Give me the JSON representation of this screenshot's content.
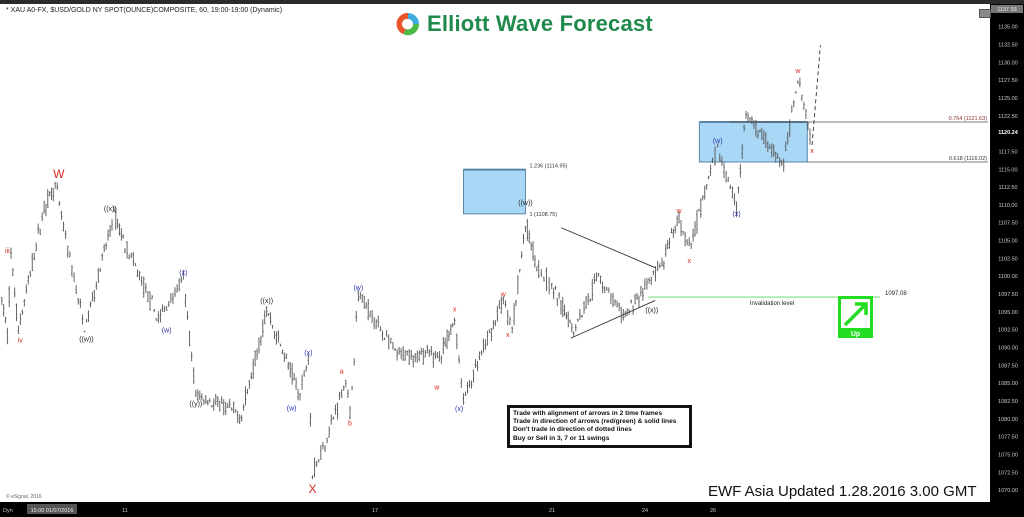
{
  "header": {
    "instrument": "* XAU A0-FX, $USD/GOLD NY SPOT(OUNCE)COMPOSITE, 60, 19:00-19:00 (Dynamic)"
  },
  "logo": {
    "text": "Elliott Wave Forecast"
  },
  "rules_box": {
    "lines": [
      "Trade with alignment of arrows in 2 time frames",
      "Trade in direction of arrows (red/green) & solid lines",
      "Don't trade in direction of dotted lines",
      "Buy or Sell in 3, 7 or 11 swings"
    ]
  },
  "footer": {
    "update": "EWF Asia Updated 1.28.2016 3.00 GMT",
    "copyright": "© eSignal, 2016"
  },
  "time_axis": {
    "mode": "Dyn",
    "cursor_label": "15:00 01/07/2016"
  },
  "colors": {
    "red": "#d42a1e",
    "blue": "#2a2fb5",
    "black": "#222222",
    "box_fill": "#a9d8f7",
    "box_edge": "#5a86a8",
    "green": "#22dd22",
    "bars": "#555555"
  },
  "chart_data": {
    "type": "ohlc",
    "title": "",
    "ylim": [
      1070,
      1137.93
    ],
    "y_ticks": [
      1135,
      1132.5,
      1130,
      1127.5,
      1125,
      1122.5,
      1117.5,
      1115,
      1112.5,
      1110,
      1107.5,
      1105,
      1102.5,
      1100,
      1097.5,
      1095,
      1092.5,
      1090,
      1087.5,
      1085,
      1082.5,
      1080,
      1077.5,
      1075,
      1072.5,
      1070
    ],
    "y_tick_labels": [
      "1135.00",
      "1132.50",
      "1130.00",
      "1127.50",
      "1125.00",
      "1122.50",
      "1117.50",
      "1115.00",
      "1112.50",
      "1110.00",
      "1107.50",
      "1105.00",
      "1102.50",
      "1100.00",
      "1097.50",
      "1095.00",
      "1092.50",
      "1090.00",
      "1087.50",
      "1085.00",
      "1082.50",
      "1080.00",
      "1077.50",
      "1075.00",
      "1072.50",
      "1070.00"
    ],
    "top_price_label": "1137.93",
    "last_price": 1120.24,
    "last_price_label": "1120.24",
    "x_ticks": [
      {
        "day": 11,
        "label": "11"
      },
      {
        "day": 17,
        "label": "17"
      },
      {
        "day": 21,
        "label": "21"
      },
      {
        "day": 24,
        "label": "24"
      },
      {
        "day": 26,
        "label": "26"
      }
    ],
    "price_path": [
      {
        "day": 7.65,
        "price": 1096.7
      },
      {
        "day": 7.8,
        "price": 1091.8
      },
      {
        "day": 7.9,
        "price": 1103.0
      },
      {
        "day": 8.1,
        "price": 1092.5
      },
      {
        "day": 8.8,
        "price": 1109.6
      },
      {
        "day": 9.1,
        "price": 1112.8
      },
      {
        "day": 9.5,
        "price": 1102.3
      },
      {
        "day": 9.9,
        "price": 1092.5
      },
      {
        "day": 10.7,
        "price": 1108.6
      },
      {
        "day": 11.8,
        "price": 1093.9
      },
      {
        "day": 12.4,
        "price": 1099.5
      },
      {
        "day": 12.7,
        "price": 1083.3
      },
      {
        "day": 13.8,
        "price": 1080.5
      },
      {
        "day": 14.4,
        "price": 1095.2
      },
      {
        "day": 15.2,
        "price": 1083.3
      },
      {
        "day": 15.4,
        "price": 1088.9
      },
      {
        "day": 15.5,
        "price": 1072.1
      },
      {
        "day": 15.9,
        "price": 1078.4
      },
      {
        "day": 16.3,
        "price": 1085.4
      },
      {
        "day": 16.4,
        "price": 1080.5
      },
      {
        "day": 16.6,
        "price": 1097.6
      },
      {
        "day": 17.5,
        "price": 1088.9
      },
      {
        "day": 18.5,
        "price": 1088.9
      },
      {
        "day": 18.8,
        "price": 1093.9
      },
      {
        "day": 19.0,
        "price": 1082.6
      },
      {
        "day": 19.9,
        "price": 1096.7
      },
      {
        "day": 20.1,
        "price": 1092.5
      },
      {
        "day": 20.4,
        "price": 1107.2
      },
      {
        "day": 20.7,
        "price": 1100.9
      },
      {
        "day": 21.7,
        "price": 1092.5
      },
      {
        "day": 22.5,
        "price": 1100.2
      },
      {
        "day": 23.3,
        "price": 1094.1
      },
      {
        "day": 24.5,
        "price": 1101.6
      },
      {
        "day": 25.0,
        "price": 1107.9
      },
      {
        "day": 25.3,
        "price": 1103.7
      },
      {
        "day": 26.1,
        "price": 1117.7
      },
      {
        "day": 26.5,
        "price": 1110.0
      },
      {
        "day": 26.7,
        "price": 1122.6
      },
      {
        "day": 27.5,
        "price": 1115.6
      },
      {
        "day": 27.8,
        "price": 1128.2
      },
      {
        "day": 28.1,
        "price": 1118.4
      }
    ],
    "wave_labels": [
      {
        "text": "iii",
        "color": "red",
        "day": 7.8,
        "price": 1103.7,
        "size": "s"
      },
      {
        "text": "iv",
        "color": "red",
        "day": 8.15,
        "price": 1091.1,
        "size": "s"
      },
      {
        "text": "W",
        "color": "red",
        "day": 9.2,
        "price": 1114.2,
        "size": "l"
      },
      {
        "text": "((w))",
        "color": "black",
        "day": 9.95,
        "price": 1091.3,
        "size": "s"
      },
      {
        "text": "((x))",
        "color": "black",
        "day": 10.6,
        "price": 1109.6,
        "size": "s"
      },
      {
        "text": "(x)",
        "color": "blue",
        "day": 12.4,
        "price": 1100.6,
        "size": "s"
      },
      {
        "text": "(w)",
        "color": "blue",
        "day": 12.0,
        "price": 1092.5,
        "size": "s"
      },
      {
        "text": "((y))",
        "color": "black",
        "day": 12.7,
        "price": 1082.2,
        "size": "s"
      },
      {
        "text": "((x))",
        "color": "black",
        "day": 14.4,
        "price": 1096.7,
        "size": "s"
      },
      {
        "text": "(w)",
        "color": "blue",
        "day": 15.0,
        "price": 1081.6,
        "size": "s"
      },
      {
        "text": "(x)",
        "color": "blue",
        "day": 15.4,
        "price": 1089.4,
        "size": "s"
      },
      {
        "text": "X",
        "color": "red",
        "day": 15.5,
        "price": 1070.0,
        "size": "l"
      },
      {
        "text": "a",
        "color": "red",
        "day": 16.2,
        "price": 1086.8,
        "size": "s"
      },
      {
        "text": "b",
        "color": "red",
        "day": 16.4,
        "price": 1079.5,
        "size": "s"
      },
      {
        "text": "(w)",
        "color": "blue",
        "day": 16.6,
        "price": 1098.5,
        "size": "s"
      },
      {
        "text": "w",
        "color": "red",
        "day": 18.4,
        "price": 1084.5,
        "size": "s"
      },
      {
        "text": "x",
        "color": "red",
        "day": 18.8,
        "price": 1095.5,
        "size": "s"
      },
      {
        "text": "(x)",
        "color": "blue",
        "day": 18.9,
        "price": 1081.5,
        "size": "s"
      },
      {
        "text": "w",
        "color": "red",
        "day": 19.9,
        "price": 1097.6,
        "size": "s"
      },
      {
        "text": "x",
        "color": "red",
        "day": 20.0,
        "price": 1091.9,
        "size": "s"
      },
      {
        "text": "((w))",
        "color": "black",
        "day": 20.4,
        "price": 1110.4,
        "size": "s"
      },
      {
        "text": "((x))",
        "color": "black",
        "day": 24.2,
        "price": 1095.3,
        "size": "s"
      },
      {
        "text": "w",
        "color": "red",
        "day": 25.0,
        "price": 1109.3,
        "size": "s"
      },
      {
        "text": "x",
        "color": "red",
        "day": 25.3,
        "price": 1102.3,
        "size": "s"
      },
      {
        "text": "(w)",
        "color": "blue",
        "day": 26.1,
        "price": 1119.1,
        "size": "s"
      },
      {
        "text": "(x)",
        "color": "blue",
        "day": 26.5,
        "price": 1108.9,
        "size": "s"
      },
      {
        "text": "w",
        "color": "red",
        "day": 27.8,
        "price": 1128.9,
        "size": "s"
      },
      {
        "text": "x",
        "color": "red",
        "day": 28.1,
        "price": 1117.7,
        "size": "s"
      }
    ],
    "zones": [
      {
        "day_from": 19.0,
        "day_to": 20.4,
        "low": 1108.75,
        "high": 1114.95,
        "low_label": "1 (1108.75)",
        "high_label": "1.236 (1114.95)"
      },
      {
        "day_from": 25.6,
        "day_to": 28.0,
        "low": 1116.02,
        "high": 1121.63,
        "low_label": "0.618 (1116.02)",
        "high_label": "0.764 (1121.63)",
        "extend": true
      }
    ],
    "invalidation": {
      "price": 1097.08,
      "label": "Invalidation level",
      "value_label": "1097.08",
      "day_from": 24.1,
      "day_to": 29.5
    },
    "triangle": [
      {
        "from": {
          "day": 21.3,
          "price": 1106.8
        },
        "to": {
          "day": 24.3,
          "price": 1101.2
        }
      },
      {
        "from": {
          "day": 21.6,
          "price": 1091.3
        },
        "to": {
          "day": 24.3,
          "price": 1096.6
        }
      }
    ],
    "projection": {
      "from": {
        "day": 28.1,
        "price": 1118.4
      },
      "to": {
        "day": 28.5,
        "price": 1132.4
      },
      "style": "dashed"
    },
    "signal": {
      "direction": "Up",
      "label": "Up",
      "color": "#22dd22"
    }
  }
}
